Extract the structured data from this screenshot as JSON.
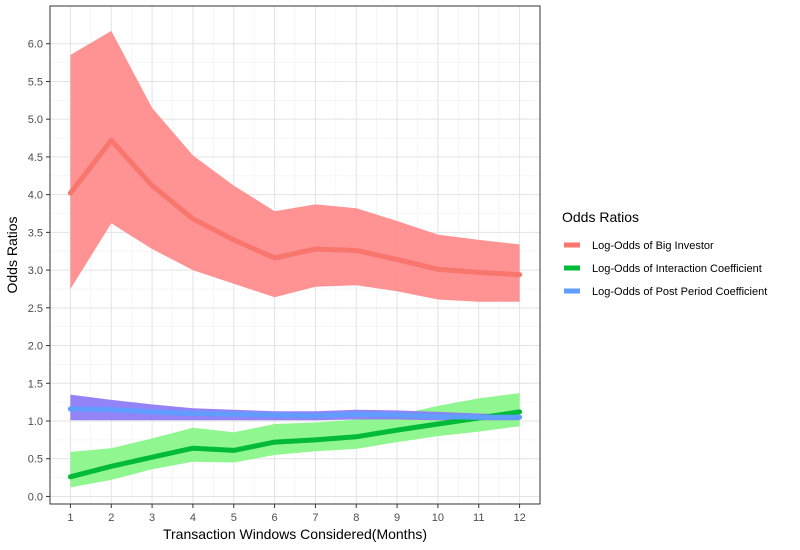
{
  "chart_data": {
    "type": "line",
    "xlabel": "Transaction Windows Considered(Months)",
    "ylabel": "Odds Ratios",
    "x": [
      1,
      2,
      3,
      4,
      5,
      6,
      7,
      8,
      9,
      10,
      11,
      12
    ],
    "xticks": [
      "1",
      "2",
      "3",
      "4",
      "5",
      "6",
      "7",
      "8",
      "9",
      "10",
      "11",
      "12"
    ],
    "xlim": [
      0.5,
      12.5
    ],
    "ylim": [
      -0.1,
      6.5
    ],
    "yticks": [
      "0.0",
      "0.5",
      "1.0",
      "1.5",
      "2.0",
      "2.5",
      "3.0",
      "3.5",
      "4.0",
      "4.5",
      "5.0",
      "5.5",
      "6.0"
    ],
    "grid": true,
    "legend": {
      "title": "Odds Ratios",
      "position": "right"
    },
    "series": [
      {
        "name": "Log-Odds of Big Investor",
        "line_color": "#F8766D",
        "band_color": "#FF8C8C",
        "values": [
          4.02,
          4.72,
          4.12,
          3.68,
          3.4,
          3.16,
          3.28,
          3.26,
          3.14,
          3.01,
          2.97,
          2.94
        ],
        "lower": [
          2.75,
          3.62,
          3.28,
          3.0,
          2.82,
          2.64,
          2.78,
          2.8,
          2.72,
          2.61,
          2.58,
          2.58
        ],
        "upper": [
          5.85,
          6.17,
          5.15,
          4.52,
          4.12,
          3.78,
          3.87,
          3.82,
          3.65,
          3.47,
          3.4,
          3.34
        ]
      },
      {
        "name": "Log-Odds of Interaction Coefficient",
        "line_color": "#00BA38",
        "band_color": "#8AF58A",
        "values": [
          0.26,
          0.4,
          0.52,
          0.64,
          0.61,
          0.72,
          0.75,
          0.79,
          0.88,
          0.96,
          1.04,
          1.12
        ],
        "lower": [
          0.12,
          0.22,
          0.36,
          0.46,
          0.45,
          0.55,
          0.6,
          0.63,
          0.72,
          0.8,
          0.86,
          0.93
        ],
        "upper": [
          0.59,
          0.64,
          0.77,
          0.91,
          0.85,
          0.96,
          0.98,
          1.02,
          1.08,
          1.2,
          1.3,
          1.37
        ]
      },
      {
        "name": "Log-Odds of Post Period Coefficient",
        "line_color": "#619CFF",
        "band_color": "#8C7CF5",
        "values": [
          1.16,
          1.15,
          1.12,
          1.1,
          1.09,
          1.08,
          1.07,
          1.09,
          1.08,
          1.06,
          1.05,
          1.05
        ],
        "lower": [
          1.01,
          1.01,
          1.01,
          1.01,
          1.01,
          1.01,
          1.01,
          1.02,
          1.02,
          1.01,
          1.01,
          1.01
        ],
        "upper": [
          1.35,
          1.28,
          1.22,
          1.17,
          1.15,
          1.13,
          1.13,
          1.15,
          1.14,
          1.12,
          1.1,
          1.08
        ]
      }
    ]
  }
}
